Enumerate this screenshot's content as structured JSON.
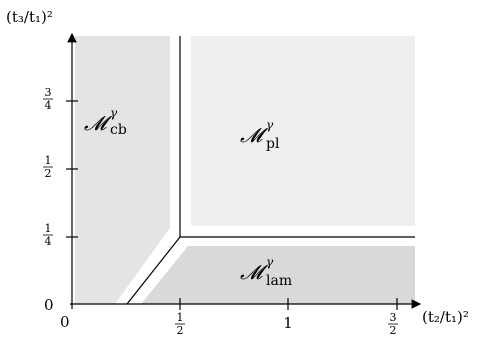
{
  "diagram": {
    "y_axis_title": "(t₃/t₁)²",
    "x_axis_title": "(t₂/t₁)²",
    "origin_label": "0",
    "x_origin_label": "0",
    "x_ticks": [
      {
        "label_num": "1",
        "label_den": "2",
        "kind": "fraction",
        "value": 0.5
      },
      {
        "label": "1",
        "kind": "integer",
        "value": 1
      },
      {
        "label_num": "3",
        "label_den": "2",
        "kind": "fraction",
        "value": 1.5
      }
    ],
    "y_ticks": [
      {
        "label_num": "1",
        "label_den": "4",
        "kind": "fraction",
        "value": 0.25
      },
      {
        "label_num": "1",
        "label_den": "2",
        "kind": "fraction",
        "value": 0.5
      },
      {
        "label_num": "3",
        "label_den": "4",
        "kind": "fraction",
        "value": 0.75
      }
    ],
    "regions": [
      {
        "name": "cb",
        "main": "𝓜",
        "sup": "γ",
        "sub": "cb",
        "color": "#e4e4e4"
      },
      {
        "name": "pl",
        "main": "𝓜",
        "sup": "γ",
        "sub": "pl",
        "color": "#efefef"
      },
      {
        "name": "lam",
        "main": "𝓜",
        "sup": "γ",
        "sub": "lam",
        "color": "#d9d9d9"
      }
    ]
  }
}
